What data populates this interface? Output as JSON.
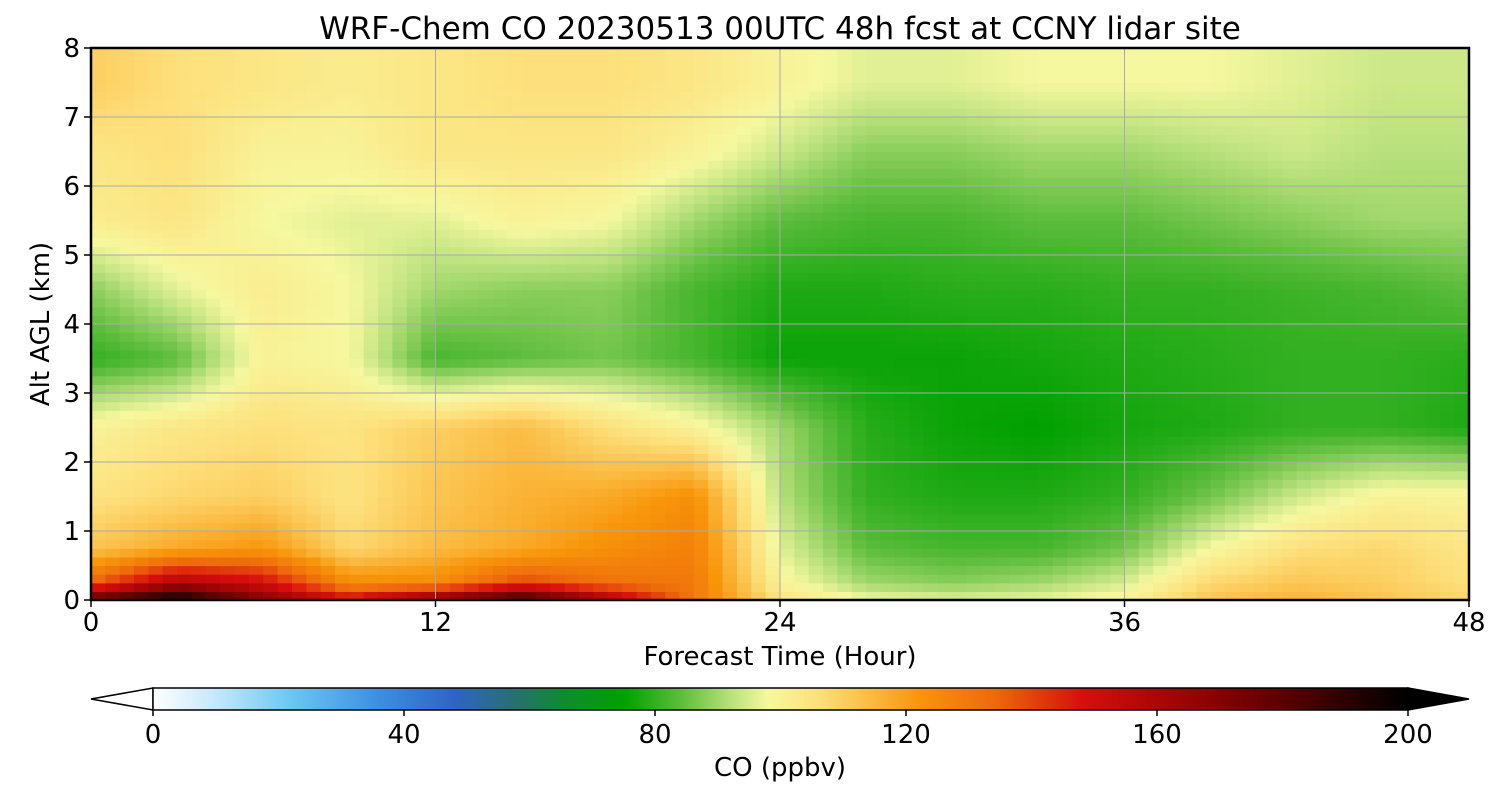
{
  "chart_data": {
    "type": "heatmap",
    "title": "WRF-Chem CO  20230513 00UTC 48h fcst at CCNY lidar site",
    "xlabel": "Forecast Time (Hour)",
    "ylabel": "Alt AGL (km)",
    "xlim": [
      0,
      48
    ],
    "ylim": [
      0,
      8
    ],
    "x_ticks": [
      "0",
      "12",
      "24",
      "36",
      "48"
    ],
    "y_ticks": [
      "0",
      "1",
      "2",
      "3",
      "4",
      "5",
      "6",
      "7",
      "8"
    ],
    "grid": true,
    "x": [
      0,
      3,
      6,
      9,
      12,
      15,
      18,
      21,
      24,
      27,
      30,
      33,
      36,
      39,
      42,
      45,
      48
    ],
    "y": [
      0,
      0.25,
      0.75,
      1.5,
      2.5,
      3.5,
      4.5,
      5.5,
      6.5,
      7.5
    ],
    "z": [
      [
        180,
        200,
        170,
        150,
        170,
        190,
        160,
        130,
        105,
        98,
        96,
        97,
        100,
        112,
        116,
        112,
        108
      ],
      [
        135,
        160,
        150,
        125,
        125,
        140,
        132,
        130,
        100,
        90,
        88,
        90,
        95,
        108,
        112,
        110,
        106
      ],
      [
        112,
        118,
        122,
        108,
        114,
        118,
        124,
        128,
        96,
        84,
        82,
        82,
        86,
        98,
        106,
        108,
        104
      ],
      [
        105,
        108,
        110,
        105,
        112,
        116,
        118,
        124,
        92,
        80,
        78,
        78,
        80,
        86,
        94,
        100,
        100
      ],
      [
        100,
        104,
        106,
        105,
        110,
        114,
        106,
        100,
        90,
        79,
        76,
        75,
        77,
        78,
        80,
        80,
        78
      ],
      [
        80,
        84,
        100,
        98,
        82,
        84,
        86,
        82,
        76,
        76,
        76,
        77,
        78,
        79,
        80,
        80,
        79
      ],
      [
        88,
        96,
        102,
        98,
        90,
        88,
        88,
        82,
        78,
        78,
        79,
        79,
        80,
        80,
        81,
        82,
        84
      ],
      [
        102,
        104,
        98,
        96,
        96,
        100,
        98,
        90,
        84,
        82,
        82,
        84,
        84,
        86,
        88,
        90,
        90
      ],
      [
        104,
        106,
        100,
        100,
        104,
        104,
        104,
        100,
        94,
        88,
        88,
        90,
        90,
        92,
        94,
        92,
        92
      ],
      [
        110,
        106,
        104,
        102,
        104,
        106,
        106,
        104,
        100,
        96,
        96,
        98,
        98,
        98,
        96,
        94,
        94
      ]
    ],
    "colorbar": {
      "label": "CO  (ppbv)",
      "min": 0,
      "max": 200,
      "ticks": [
        "0",
        "40",
        "80",
        "120",
        "160",
        "200"
      ],
      "extend": "both",
      "stops": [
        {
          "v": 0,
          "c": "#ffffff"
        },
        {
          "v": 10,
          "c": "#c4e8fb"
        },
        {
          "v": 22,
          "c": "#6cc6f2"
        },
        {
          "v": 36,
          "c": "#3e8ee0"
        },
        {
          "v": 48,
          "c": "#2f64c4"
        },
        {
          "v": 58,
          "c": "#28706c"
        },
        {
          "v": 66,
          "c": "#0e8c2c"
        },
        {
          "v": 75,
          "c": "#00a000"
        },
        {
          "v": 84,
          "c": "#5cbc3c"
        },
        {
          "v": 92,
          "c": "#b8e07c"
        },
        {
          "v": 98,
          "c": "#f6f8a0"
        },
        {
          "v": 106,
          "c": "#fde07c"
        },
        {
          "v": 114,
          "c": "#fbbc44"
        },
        {
          "v": 122,
          "c": "#f8960a"
        },
        {
          "v": 134,
          "c": "#ee6a0c"
        },
        {
          "v": 148,
          "c": "#d80e0e"
        },
        {
          "v": 162,
          "c": "#a60404"
        },
        {
          "v": 180,
          "c": "#5a0000"
        },
        {
          "v": 200,
          "c": "#000000"
        }
      ]
    }
  }
}
